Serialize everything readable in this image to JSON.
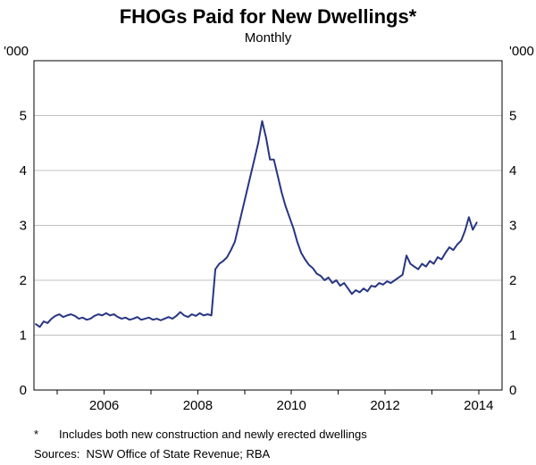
{
  "chart_data": {
    "type": "line",
    "title": "FHOGs Paid for New Dwellings*",
    "subtitle": "Monthly",
    "unit_left": "'000",
    "unit_right": "'000",
    "ylim": [
      0,
      6
    ],
    "yticks": [
      0,
      1,
      2,
      3,
      4,
      5
    ],
    "xlim": [
      2004.5,
      2014.5
    ],
    "xtick_years": [
      2005,
      2006,
      2007,
      2008,
      2009,
      2010,
      2011,
      2012,
      2013,
      2014
    ],
    "xtick_labels": [
      2006,
      2008,
      2010,
      2012,
      2014
    ],
    "grid": true,
    "legend_position": "none",
    "colors": {
      "line": "#283583",
      "grid": "#c0c0c0",
      "axis": "#000000"
    },
    "series": [
      {
        "name": "FHOGs paid for new dwellings",
        "start_year": 2004,
        "start_month": 7,
        "frequency": "monthly",
        "values": [
          1.2,
          1.15,
          1.25,
          1.22,
          1.3,
          1.35,
          1.38,
          1.33,
          1.36,
          1.38,
          1.35,
          1.3,
          1.32,
          1.28,
          1.3,
          1.35,
          1.38,
          1.36,
          1.4,
          1.36,
          1.38,
          1.33,
          1.3,
          1.32,
          1.28,
          1.3,
          1.33,
          1.28,
          1.3,
          1.32,
          1.28,
          1.3,
          1.27,
          1.3,
          1.33,
          1.3,
          1.35,
          1.42,
          1.36,
          1.33,
          1.38,
          1.35,
          1.4,
          1.36,
          1.38,
          1.36,
          2.2,
          2.3,
          2.35,
          2.42,
          2.55,
          2.7,
          3.0,
          3.3,
          3.6,
          3.9,
          4.2,
          4.5,
          4.9,
          4.6,
          4.2,
          4.2,
          3.9,
          3.6,
          3.35,
          3.15,
          2.95,
          2.7,
          2.5,
          2.38,
          2.28,
          2.22,
          2.12,
          2.08,
          2.0,
          2.05,
          1.95,
          2.0,
          1.9,
          1.95,
          1.85,
          1.75,
          1.82,
          1.78,
          1.85,
          1.8,
          1.9,
          1.88,
          1.95,
          1.92,
          1.98,
          1.95,
          2.0,
          2.05,
          2.1,
          2.45,
          2.3,
          2.25,
          2.2,
          2.3,
          2.25,
          2.35,
          2.3,
          2.42,
          2.38,
          2.5,
          2.6,
          2.55,
          2.65,
          2.72,
          2.9,
          3.15,
          2.92,
          3.05
        ]
      }
    ],
    "footnote_marker": "*",
    "footnote": "Includes both new construction and newly erected dwellings",
    "sources": "Sources:  NSW Office of State Revenue; RBA"
  }
}
